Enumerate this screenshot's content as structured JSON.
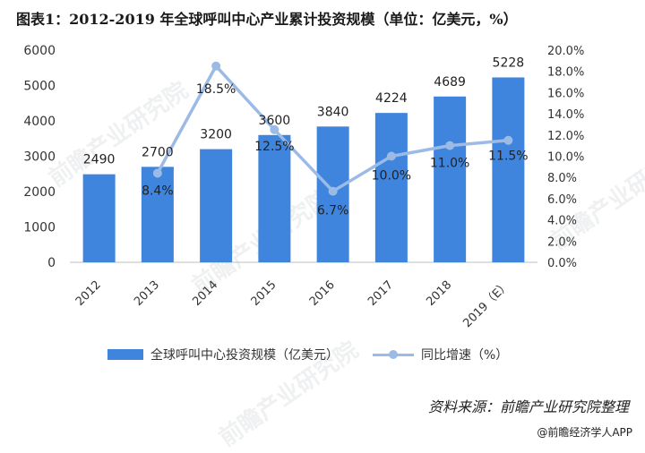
{
  "title": "图表1：2012-2019 年全球呼叫中心产业累计投资规模（单位：亿美元，%）",
  "source": "资料来源：前瞻产业研究院整理",
  "footer": "@前瞻经济学人APP",
  "watermark": "前瞻产业研究院",
  "colors": {
    "bar": "#3f85dd",
    "line": "#9bbbe6",
    "axis": "#bfbfbf",
    "text": "#333333"
  },
  "chart_data": {
    "type": "bar",
    "categories": [
      "2012",
      "2013",
      "2014",
      "2015",
      "2016",
      "2017",
      "2018",
      "2019（E）"
    ],
    "series": [
      {
        "name": "全球呼叫中心投资规模（亿美元）",
        "type": "bar",
        "axis": "left",
        "values": [
          2490,
          2700,
          3200,
          3600,
          3840,
          4224,
          4689,
          5228
        ]
      },
      {
        "name": "同比增速（%）",
        "type": "line",
        "axis": "right",
        "values": [
          null,
          8.4,
          18.5,
          12.5,
          6.7,
          10.0,
          11.0,
          11.5
        ]
      }
    ],
    "bar_labels": [
      "2490",
      "2700",
      "3200",
      "3600",
      "3840",
      "4224",
      "4689",
      "5228"
    ],
    "line_labels": [
      "",
      "8.4%",
      "18.5%",
      "12.5%",
      "6.7%",
      "10.0%",
      "11.0%",
      "11.5%"
    ],
    "y_left": {
      "ticks": [
        "0",
        "1000",
        "2000",
        "3000",
        "4000",
        "5000",
        "6000"
      ],
      "lim": [
        0,
        6000
      ]
    },
    "y_right": {
      "ticks": [
        "0.0%",
        "2.0%",
        "4.0%",
        "6.0%",
        "8.0%",
        "10.0%",
        "12.0%",
        "14.0%",
        "16.0%",
        "18.0%",
        "20.0%"
      ],
      "lim": [
        0,
        20
      ]
    },
    "legend": "bottom",
    "grid": false
  }
}
